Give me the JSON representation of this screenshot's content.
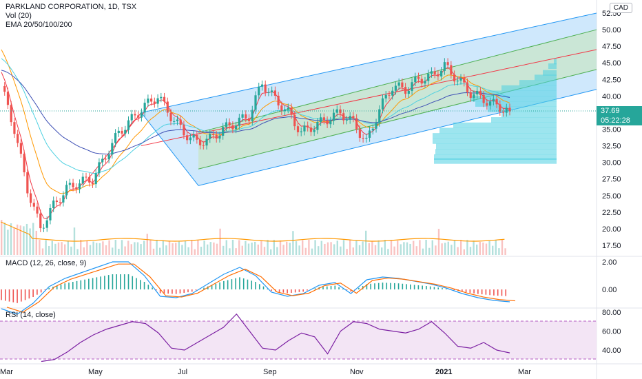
{
  "header": {
    "title": "PARKLAND CORPORATION, 1D, TSX",
    "vol_label": "Vol (20)",
    "ema_label": "EMA 20/50/100/200",
    "currency": "CAD"
  },
  "price_panel": {
    "ticks": [
      "52.50",
      "50.00",
      "47.50",
      "45.00",
      "42.50",
      "40.00",
      "37.50",
      "35.00",
      "32.50",
      "30.00",
      "27.50",
      "25.00",
      "22.50",
      "20.00",
      "17.50"
    ],
    "last_price": "37.69",
    "countdown": "05:22:28"
  },
  "macd_panel": {
    "label": "MACD (12, 26, close, 9)",
    "ticks": [
      "2.00",
      "0.00"
    ]
  },
  "rsi_panel": {
    "label": "RSI (14, close)",
    "ticks": [
      "80.00",
      "60.00",
      "40.00"
    ]
  },
  "x_axis": {
    "labels": [
      "Mar",
      "May",
      "Jul",
      "Sep",
      "Nov",
      "2021",
      "Mar"
    ]
  },
  "colors": {
    "up": "#26a69a",
    "down": "#ef5350",
    "channel_outer": "#2196f3",
    "channel_inner": "#4caf50",
    "median": "#f23645",
    "ema20": "#f23645",
    "ema50": "#ff9800",
    "ema100": "#4dd0e1",
    "ema200": "#3f51b5",
    "macd_line": "#2196f3",
    "signal_line": "#ff6d00",
    "rsi_line": "#7b1fa2",
    "rsi_band": "#f3e5f5",
    "last_price_box": "#26a69a",
    "volume_profile": "#4dd0e1"
  },
  "chart_data": {
    "type": "candlestick",
    "symbol": "PARKLAND CORPORATION",
    "interval": "1D",
    "exchange": "TSX",
    "x": [
      "Mar",
      "May",
      "Jul",
      "Sep",
      "Nov",
      "2021",
      "Mar"
    ],
    "price_series": [
      {
        "date": "2020-03",
        "close": 41.5
      },
      {
        "date": "2020-03",
        "close": 35.0
      },
      {
        "date": "2020-03",
        "close": 26.0
      },
      {
        "date": "2020-03",
        "close": 20.0
      },
      {
        "date": "2020-04",
        "close": 23.5
      },
      {
        "date": "2020-04",
        "close": 26.0
      },
      {
        "date": "2020-04",
        "close": 27.0
      },
      {
        "date": "2020-04",
        "close": 27.5
      },
      {
        "date": "2020-05",
        "close": 31.0
      },
      {
        "date": "2020-05",
        "close": 34.5
      },
      {
        "date": "2020-05",
        "close": 36.5
      },
      {
        "date": "2020-05",
        "close": 38.5
      },
      {
        "date": "2020-06",
        "close": 40.0
      },
      {
        "date": "2020-06",
        "close": 37.0
      },
      {
        "date": "2020-06",
        "close": 34.5
      },
      {
        "date": "2020-06",
        "close": 33.0
      },
      {
        "date": "2020-07",
        "close": 33.5
      },
      {
        "date": "2020-07",
        "close": 35.0
      },
      {
        "date": "2020-07",
        "close": 36.0
      },
      {
        "date": "2020-08",
        "close": 37.0
      },
      {
        "date": "2020-08",
        "close": 42.0
      },
      {
        "date": "2020-08",
        "close": 39.5
      },
      {
        "date": "2020-09",
        "close": 37.5
      },
      {
        "date": "2020-09",
        "close": 34.5
      },
      {
        "date": "2020-09",
        "close": 35.5
      },
      {
        "date": "2020-10",
        "close": 36.5
      },
      {
        "date": "2020-10",
        "close": 37.5
      },
      {
        "date": "2020-10",
        "close": 36.0
      },
      {
        "date": "2020-11",
        "close": 33.0
      },
      {
        "date": "2020-11",
        "close": 38.0
      },
      {
        "date": "2020-11",
        "close": 41.5
      },
      {
        "date": "2020-12",
        "close": 41.0
      },
      {
        "date": "2020-12",
        "close": 42.5
      },
      {
        "date": "2020-12",
        "close": 43.0
      },
      {
        "date": "2021-01",
        "close": 44.5
      },
      {
        "date": "2021-01",
        "close": 42.5
      },
      {
        "date": "2021-01",
        "close": 40.5
      },
      {
        "date": "2021-02",
        "close": 39.5
      },
      {
        "date": "2021-02",
        "close": 38.5
      },
      {
        "date": "2021-02",
        "close": 37.69
      }
    ],
    "macd": [
      -1.4,
      -1.8,
      -1.0,
      0.2,
      0.8,
      1.2,
      1.6,
      2.0,
      2.0,
      1.0,
      -0.5,
      -0.6,
      -0.3,
      0.4,
      1.1,
      1.6,
      1.0,
      -0.2,
      -0.5,
      -0.3,
      0.3,
      0.5,
      -0.3,
      0.7,
      0.9,
      0.8,
      0.6,
      0.4,
      0.1,
      -0.3,
      -0.6,
      -0.8,
      -0.9
    ],
    "rsi": [
      28,
      30,
      38,
      48,
      56,
      62,
      66,
      70,
      68,
      58,
      42,
      40,
      48,
      56,
      64,
      78,
      60,
      42,
      40,
      50,
      58,
      54,
      36,
      60,
      70,
      68,
      62,
      60,
      58,
      62,
      70,
      58,
      44,
      42,
      48,
      40,
      37
    ],
    "channel": {
      "outer_upper": [
        [
          "2020-06",
          37.5
        ],
        [
          "2021-03",
          52.5
        ]
      ],
      "outer_lower": [
        [
          "2020-07",
          26.5
        ],
        [
          "2021-03",
          41.0
        ]
      ],
      "inner_upper": [
        [
          "2020-07",
          34.5
        ],
        [
          "2021-03",
          50.0
        ]
      ],
      "inner_lower": [
        [
          "2020-07",
          29.0
        ],
        [
          "2021-03",
          44.0
        ]
      ],
      "median": [
        [
          "2020-06",
          32.5
        ],
        [
          "2021-03",
          47.0
        ]
      ]
    },
    "ylim": [
      16.5,
      53.5
    ],
    "legend": [
      "Vol (20)",
      "EMA 20/50/100/200"
    ]
  }
}
